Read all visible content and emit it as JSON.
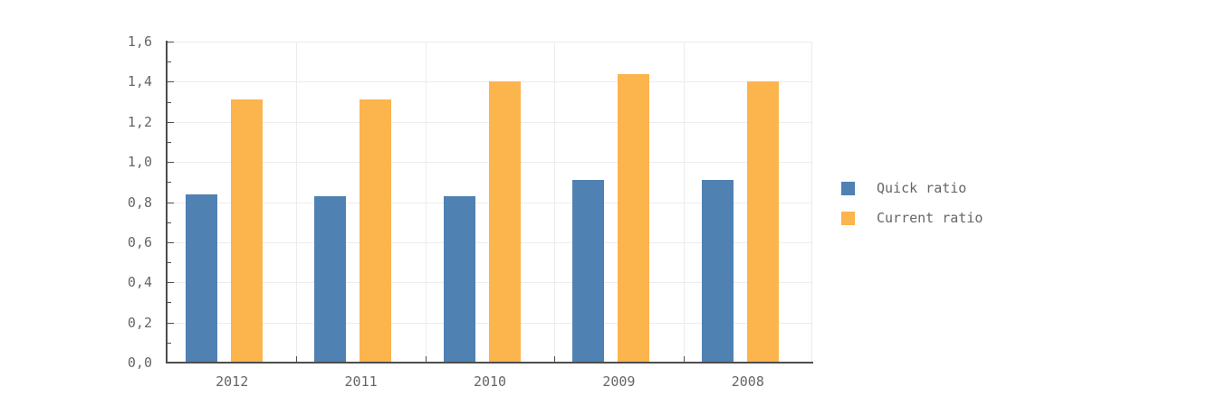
{
  "chart_data": {
    "type": "bar",
    "title": "",
    "xlabel": "",
    "ylabel": "",
    "categories": [
      "2012",
      "2011",
      "2010",
      "2009",
      "2008"
    ],
    "series": [
      {
        "name": "Quick ratio",
        "color": "#4f81b3",
        "values": [
          0.84,
          0.83,
          0.83,
          0.91,
          0.91
        ]
      },
      {
        "name": "Current ratio",
        "color": "#fcb44d",
        "values": [
          1.31,
          1.31,
          1.4,
          1.44,
          1.4
        ]
      }
    ],
    "ylim": [
      0,
      1.6
    ],
    "y_major_step": 0.2,
    "y_minor_step": 0.1,
    "decimal_separator": ",",
    "y_tick_labels": [
      "0,0",
      "0,2",
      "0,4",
      "0,6",
      "0,8",
      "1,0",
      "1,2",
      "1,4",
      "1,6"
    ],
    "grid": true,
    "legend_position": "right",
    "colors": {
      "background": "#ffffff",
      "gridline": "#ececec",
      "axis": "#4d4d4d",
      "tick_text": "#666666"
    }
  }
}
